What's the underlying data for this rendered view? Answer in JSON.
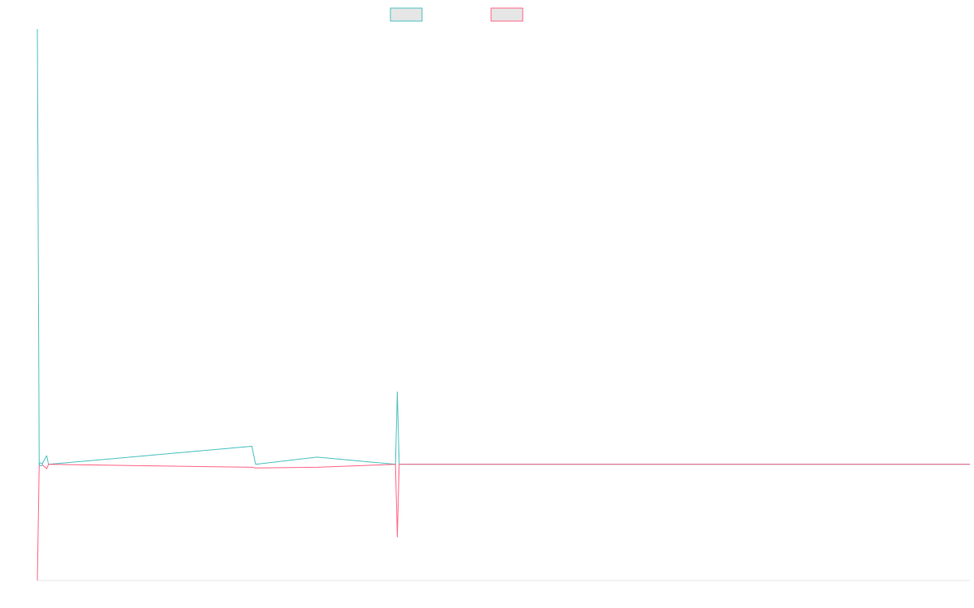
{
  "chart_data": {
    "type": "line",
    "title": "",
    "xlabel": "",
    "ylabel": "",
    "legend": {
      "placement": "top-center"
    },
    "grid": false,
    "xlim": [
      0,
      1000
    ],
    "ylim": [
      -1.6,
      6
    ],
    "x": [
      0,
      2,
      5,
      10,
      12,
      230,
      234,
      300,
      384,
      386,
      388,
      393,
      1000
    ],
    "series": [
      {
        "name": "",
        "color": "#4bc0c0",
        "fill": "#e6e6e6",
        "values": [
          6,
          0,
          0,
          0.12,
          0,
          0.25,
          0,
          0.1,
          0,
          1.0,
          0,
          0,
          0
        ]
      },
      {
        "name": "",
        "color": "#ff6384",
        "fill": "#e6e6e6",
        "values": [
          -1.6,
          0,
          0,
          -0.06,
          0,
          -0.04,
          -0.05,
          -0.04,
          0,
          -1.0,
          0,
          0,
          0
        ]
      }
    ]
  }
}
